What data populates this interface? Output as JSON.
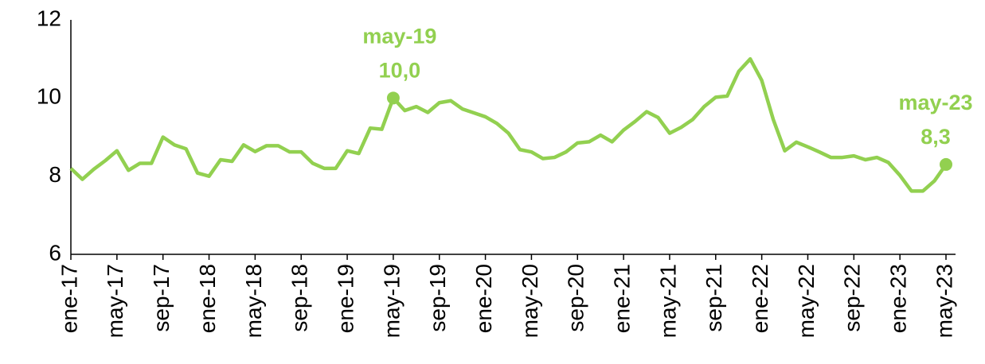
{
  "chart_data": {
    "type": "line",
    "categories": [
      "ene-17",
      null,
      null,
      null,
      "may-17",
      null,
      null,
      null,
      "sep-17",
      null,
      null,
      null,
      "ene-18",
      null,
      null,
      null,
      "may-18",
      null,
      null,
      null,
      "sep-18",
      null,
      null,
      null,
      "ene-19",
      null,
      null,
      null,
      "may-19",
      null,
      null,
      null,
      "sep-19",
      null,
      null,
      null,
      "ene-20",
      null,
      null,
      null,
      "may-20",
      null,
      null,
      null,
      "sep-20",
      null,
      null,
      null,
      "ene-21",
      null,
      null,
      null,
      "may-21",
      null,
      null,
      null,
      "sep-21",
      null,
      null,
      null,
      "ene-22",
      null,
      null,
      null,
      "may-22",
      null,
      null,
      null,
      "sep-22",
      null,
      null,
      null,
      "ene-23",
      null,
      null,
      null,
      "may-23"
    ],
    "values": [
      8.2,
      7.92,
      8.18,
      8.4,
      8.65,
      8.15,
      8.33,
      8.33,
      9.0,
      8.8,
      8.7,
      8.08,
      8.0,
      8.42,
      8.38,
      8.8,
      8.63,
      8.78,
      8.78,
      8.62,
      8.62,
      8.33,
      8.2,
      8.2,
      8.65,
      8.58,
      9.23,
      9.2,
      10.0,
      9.68,
      9.78,
      9.63,
      9.88,
      9.93,
      9.72,
      9.62,
      9.52,
      9.35,
      9.1,
      8.68,
      8.62,
      8.45,
      8.48,
      8.62,
      8.85,
      8.88,
      9.05,
      8.88,
      9.18,
      9.4,
      9.65,
      9.5,
      9.1,
      9.25,
      9.45,
      9.78,
      10.02,
      10.05,
      10.68,
      11.0,
      10.45,
      9.45,
      8.65,
      8.87,
      8.75,
      8.62,
      8.48,
      8.48,
      8.52,
      8.42,
      8.48,
      8.35,
      8.02,
      7.62,
      7.62,
      7.88,
      8.3
    ],
    "value_labels": [
      null,
      null,
      null,
      null,
      null,
      null,
      null,
      null,
      null,
      null,
      null,
      null,
      null,
      null,
      null,
      null,
      null,
      null,
      null,
      null,
      null,
      null,
      null,
      null,
      null,
      null,
      null,
      null,
      "10,0",
      null,
      null,
      null,
      null,
      null,
      null,
      null,
      null,
      null,
      null,
      null,
      null,
      null,
      null,
      null,
      null,
      null,
      null,
      null,
      null,
      null,
      null,
      null,
      null,
      null,
      null,
      null,
      null,
      null,
      null,
      null,
      null,
      null,
      null,
      null,
      null,
      null,
      null,
      null,
      null,
      null,
      null,
      null,
      null,
      null,
      null,
      null,
      "8,3"
    ],
    "color": "#92d050",
    "ylim": [
      6,
      12
    ],
    "yticks": [
      6,
      8,
      10,
      12
    ],
    "grid": false
  }
}
